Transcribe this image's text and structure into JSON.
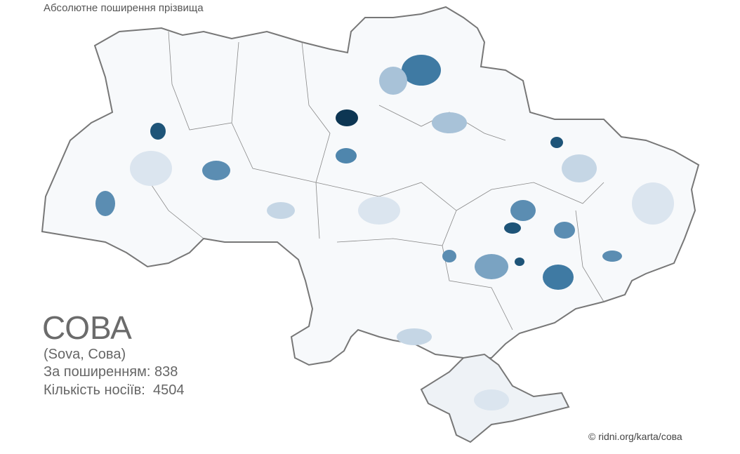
{
  "header": {
    "title": "Абсолютне поширення прізвища"
  },
  "surname": {
    "name": "СОВА",
    "variants": "(Sova, Сова)",
    "rank_label": "За поширенням:",
    "rank": 838,
    "count_label": "Кількість носіїв:",
    "count": 4504
  },
  "footer": {
    "credit": "© ridni.org/karta/сова"
  }
}
